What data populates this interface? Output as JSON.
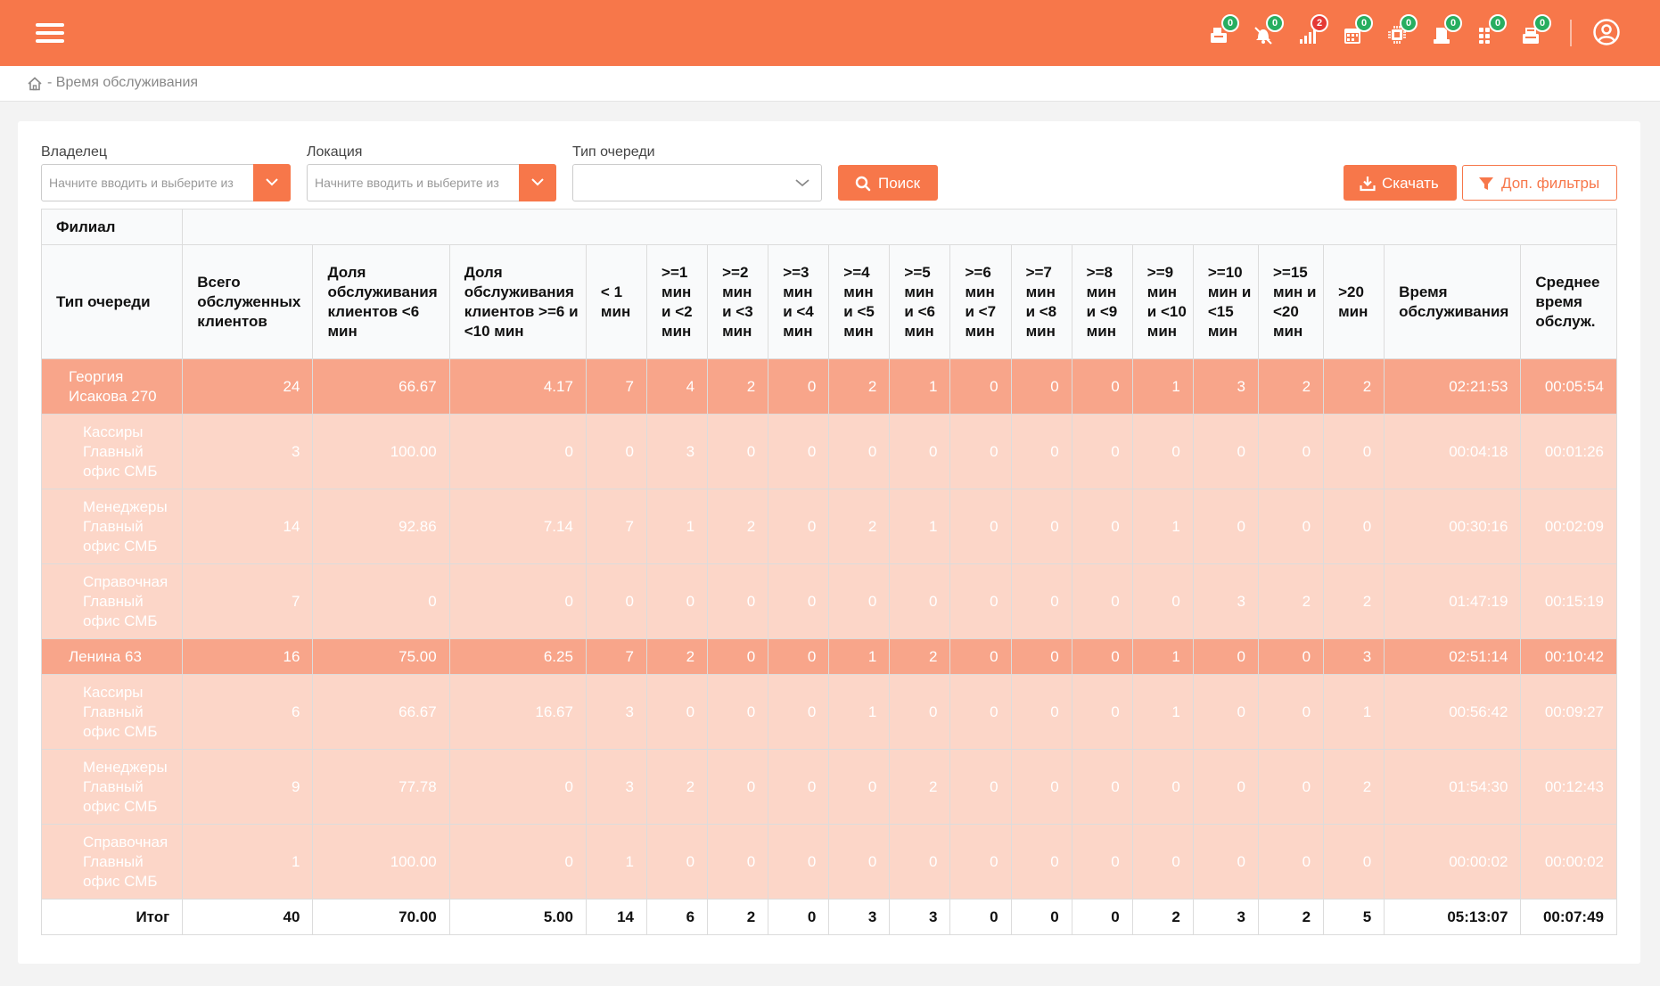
{
  "colors": {
    "accent": "#f7774a",
    "branch_row": "#f8a58a",
    "sub_row": "#fcd6c8",
    "badge_green": "#27ae60",
    "badge_red": "#e53935"
  },
  "topbar": {
    "notifications": [
      {
        "icon": "cash-register-icon",
        "count": "0",
        "status": "green"
      },
      {
        "icon": "bell-off-icon",
        "count": "0",
        "status": "green"
      },
      {
        "icon": "signal-icon",
        "count": "2",
        "status": "red"
      },
      {
        "icon": "calendar-icon",
        "count": "0",
        "status": "green"
      },
      {
        "icon": "chip-icon",
        "count": "0",
        "status": "green"
      },
      {
        "icon": "printer-icon",
        "count": "0",
        "status": "green"
      },
      {
        "icon": "grid-icon",
        "count": "0",
        "status": "green"
      },
      {
        "icon": "atm-icon",
        "count": "0",
        "status": "green"
      }
    ]
  },
  "breadcrumb": {
    "text": "- Время обслуживания"
  },
  "filters": {
    "owner": {
      "label": "Владелец",
      "placeholder": "Начните вводить и выберите из"
    },
    "location": {
      "label": "Локация",
      "placeholder": "Начните вводить и выберите из"
    },
    "queue_type": {
      "label": "Тип очереди",
      "value": ""
    },
    "search_label": "Поиск",
    "download_label": "Скачать",
    "more_filters_label": "Доп. фильтры"
  },
  "table": {
    "filial_header": "Филиал",
    "columns": [
      "Тип очереди",
      "Всего обслуженных клиентов",
      "Доля обслуживания клиентов <6 мин",
      "Доля обслуживания клиентов >=6 и <10 мин",
      "< 1 мин",
      ">=1 мин и <2 мин",
      ">=2 мин и <3 мин",
      ">=3 мин и <4 мин",
      ">=4 мин и <5 мин",
      ">=5 мин и <6 мин",
      ">=6 мин и <7 мин",
      ">=7 мин и <8 мин",
      ">=8 мин и <9 мин",
      ">=9 мин и <10 мин",
      ">=10 мин и <15 мин",
      ">=15 мин и <20 мин",
      ">20 мин",
      "Время обслуживания",
      "Среднее время обслуж."
    ],
    "rows": [
      {
        "type": "branch",
        "name": "Георгия Исакова 270",
        "values": [
          "24",
          "66.67",
          "4.17",
          "7",
          "4",
          "2",
          "0",
          "2",
          "1",
          "0",
          "0",
          "0",
          "1",
          "3",
          "2",
          "2",
          "02:21:53",
          "00:05:54"
        ]
      },
      {
        "type": "sub",
        "name": "Кассиры Главный офис СМБ",
        "values": [
          "3",
          "100.00",
          "0",
          "0",
          "3",
          "0",
          "0",
          "0",
          "0",
          "0",
          "0",
          "0",
          "0",
          "0",
          "0",
          "0",
          "00:04:18",
          "00:01:26"
        ]
      },
      {
        "type": "sub",
        "name": "Менеджеры Главный офис СМБ",
        "values": [
          "14",
          "92.86",
          "7.14",
          "7",
          "1",
          "2",
          "0",
          "2",
          "1",
          "0",
          "0",
          "0",
          "1",
          "0",
          "0",
          "0",
          "00:30:16",
          "00:02:09"
        ]
      },
      {
        "type": "sub",
        "name": "Справочная Главный офис СМБ",
        "values": [
          "7",
          "0",
          "0",
          "0",
          "0",
          "0",
          "0",
          "0",
          "0",
          "0",
          "0",
          "0",
          "0",
          "3",
          "2",
          "2",
          "01:47:19",
          "00:15:19"
        ]
      },
      {
        "type": "branch2",
        "name": "Ленина 63",
        "values": [
          "16",
          "75.00",
          "6.25",
          "7",
          "2",
          "0",
          "0",
          "1",
          "2",
          "0",
          "0",
          "0",
          "1",
          "0",
          "0",
          "3",
          "02:51:14",
          "00:10:42"
        ]
      },
      {
        "type": "sub",
        "name": "Кассиры Главный офис СМБ",
        "values": [
          "6",
          "66.67",
          "16.67",
          "3",
          "0",
          "0",
          "0",
          "1",
          "0",
          "0",
          "0",
          "0",
          "1",
          "0",
          "0",
          "1",
          "00:56:42",
          "00:09:27"
        ]
      },
      {
        "type": "sub",
        "name": "Менеджеры Главный офис СМБ",
        "values": [
          "9",
          "77.78",
          "0",
          "3",
          "2",
          "0",
          "0",
          "0",
          "2",
          "0",
          "0",
          "0",
          "0",
          "0",
          "0",
          "2",
          "01:54:30",
          "00:12:43"
        ]
      },
      {
        "type": "sub",
        "name": "Справочная Главный офис СМБ",
        "values": [
          "1",
          "100.00",
          "0",
          "1",
          "0",
          "0",
          "0",
          "0",
          "0",
          "0",
          "0",
          "0",
          "0",
          "0",
          "0",
          "0",
          "00:00:02",
          "00:00:02"
        ]
      },
      {
        "type": "total",
        "name": "Итог",
        "values": [
          "40",
          "70.00",
          "5.00",
          "14",
          "6",
          "2",
          "0",
          "3",
          "3",
          "0",
          "0",
          "0",
          "2",
          "3",
          "2",
          "5",
          "05:13:07",
          "00:07:49"
        ]
      }
    ]
  }
}
